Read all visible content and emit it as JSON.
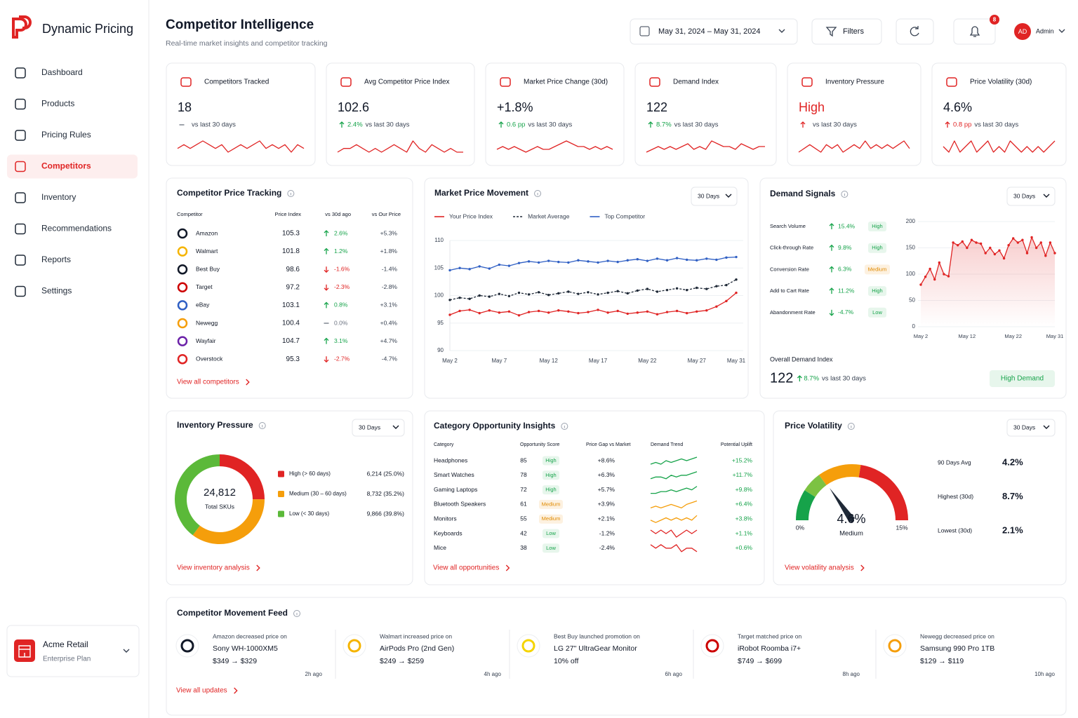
{
  "sidebar": {
    "brand": "Dynamic Pricing",
    "nav": [
      "Dashboard",
      "Products",
      "Pricing Rules",
      "Competitors",
      "Inventory",
      "Recommendations",
      "Reports",
      "Settings"
    ],
    "active": 3,
    "account": {
      "name": "Acme Retail",
      "plan": "Enterprise Plan"
    }
  },
  "header": {
    "title": "Competitor Intelligence",
    "subtitle": "Real-time market insights and competitor tracking",
    "date_range": "May 31, 2024 – May 31, 2024",
    "filters": "Filters",
    "notifications": 8,
    "user_initials": "AD",
    "user": "Admin"
  },
  "kpis": [
    {
      "label": "Competitors Tracked",
      "value": 18,
      "trend": "flat",
      "note": "vs last 30 days",
      "sparkline": [
        4,
        5,
        4,
        5,
        6,
        5,
        4,
        5,
        3,
        4,
        5,
        4,
        5,
        6,
        4,
        5,
        4,
        5,
        3,
        5,
        4
      ]
    },
    {
      "label": "Avg Competitor Price Index",
      "value": 102.6,
      "trend": "up",
      "change": "2.4%",
      "tone": "positive",
      "note": "vs last 30 days",
      "sparkline": [
        4,
        5,
        5,
        6,
        5,
        4,
        5,
        4,
        5,
        6,
        5,
        4,
        7,
        5,
        4,
        6,
        5,
        4,
        5,
        4,
        4
      ]
    },
    {
      "label": "Market Price Change (30d)",
      "value": "+1.8%",
      "trend": "up",
      "change": "0.6 pp",
      "tone": "positive",
      "note": "vs last 30 days",
      "sparkline": [
        4,
        5,
        4,
        5,
        4,
        3,
        4,
        5,
        4,
        4,
        5,
        6,
        7,
        6,
        5,
        5,
        4,
        5,
        4,
        5,
        4
      ]
    },
    {
      "label": "Demand Index",
      "value": 122,
      "trend": "up",
      "change": "8.7%",
      "tone": "positive",
      "note": "vs last 30 days",
      "sparkline": [
        3,
        4,
        5,
        4,
        5,
        4,
        5,
        6,
        4,
        5,
        4,
        7,
        6,
        5,
        5,
        4,
        6,
        5,
        4,
        5,
        5
      ]
    },
    {
      "label": "Inventory Pressure",
      "value": "High",
      "value_color": "#e02424",
      "trend": "up",
      "tone": "negative",
      "note": "vs last 30 days",
      "sparkline": [
        3,
        4,
        5,
        4,
        3,
        5,
        4,
        5,
        3,
        4,
        5,
        4,
        6,
        4,
        5,
        4,
        5,
        4,
        5,
        6,
        4
      ]
    },
    {
      "label": "Price Volatility (30d)",
      "value": "4.6%",
      "trend": "up",
      "change": "0.8 pp",
      "tone": "negative",
      "note": "vs last 30 days",
      "sparkline": [
        5,
        4,
        6,
        4,
        5,
        6,
        4,
        5,
        6,
        4,
        5,
        4,
        6,
        5,
        4,
        5,
        4,
        5,
        4,
        5,
        6
      ]
    }
  ],
  "competitor_tracking": {
    "title": "Competitor Price Tracking",
    "columns": [
      "Competitor",
      "Price Index",
      "vs 30d ago",
      "vs Our Price"
    ],
    "rows": [
      [
        "Amazon",
        105.3,
        "2.6%",
        "+5.3%"
      ],
      [
        "Walmart",
        101.8,
        "1.2%",
        "+1.8%"
      ],
      [
        "Best Buy",
        98.6,
        "-1.6%",
        "-1.4%"
      ],
      [
        "Target",
        97.2,
        "-2.3%",
        "-2.8%"
      ],
      [
        "eBay",
        103.1,
        "0.8%",
        "+3.1%"
      ],
      [
        "Newegg",
        100.4,
        "0.0%",
        "+0.4%"
      ],
      [
        "Wayfair",
        104.7,
        "3.1%",
        "+4.7%"
      ],
      [
        "Overstock",
        95.3,
        "-2.7%",
        "-4.7%"
      ]
    ],
    "link": "View all competitors"
  },
  "market_movement": {
    "title": "Market Price Movement",
    "range": "30 Days",
    "chart_data": {
      "type": "line",
      "categories": [
        "May 2",
        null,
        null,
        null,
        null,
        "May 7",
        null,
        null,
        null,
        null,
        "May 12",
        null,
        null,
        null,
        null,
        "May 17",
        null,
        null,
        null,
        null,
        "May 22",
        null,
        null,
        null,
        null,
        "May 27",
        null,
        null,
        null,
        "May 31"
      ],
      "series": [
        {
          "name": "Your Price Index",
          "color": "#e02424",
          "style": "solid",
          "values": [
            96.5,
            97.2,
            97.4,
            96.8,
            97.3,
            96.9,
            97.1,
            96.4,
            97.0,
            97.2,
            96.9,
            97.3,
            97.1,
            96.8,
            97.0,
            97.4,
            96.9,
            97.2,
            96.7,
            96.9,
            97.1,
            96.6,
            97.0,
            97.2,
            96.8,
            97.1,
            97.3,
            98.0,
            99.0,
            100.5
          ]
        },
        {
          "name": "Market Average",
          "color": "#1f2937",
          "style": "dashed",
          "values": [
            99.2,
            99.6,
            99.4,
            100.0,
            99.8,
            100.3,
            99.9,
            100.5,
            100.2,
            100.6,
            100.1,
            100.4,
            100.7,
            100.3,
            100.6,
            100.2,
            100.5,
            100.8,
            100.4,
            100.9,
            101.2,
            100.7,
            101.0,
            101.3,
            101.0,
            101.4,
            101.2,
            101.7,
            101.9,
            102.9
          ]
        },
        {
          "name": "Top Competitor",
          "color": "#2f5fc4",
          "style": "solid",
          "values": [
            104.6,
            105.0,
            104.8,
            105.3,
            104.9,
            105.6,
            105.4,
            105.9,
            106.2,
            106.0,
            106.3,
            106.1,
            106.0,
            106.4,
            106.2,
            106.0,
            106.3,
            106.1,
            106.4,
            106.6,
            106.3,
            106.7,
            106.4,
            106.8,
            106.5,
            106.4,
            106.7,
            106.5,
            106.9,
            107.0
          ]
        }
      ],
      "ylim": [
        90,
        110
      ],
      "yticks": [
        90,
        95,
        100,
        105,
        110
      ],
      "grid": true
    }
  },
  "demand_signals": {
    "title": "Demand Signals",
    "range": "30 Days",
    "signals": [
      [
        "Search Volume",
        "15.4%",
        "High"
      ],
      [
        "Click-through Rate",
        "9.8%",
        "High"
      ],
      [
        "Conversion Rate",
        "6.3%",
        "Medium"
      ],
      [
        "Add to Cart Rate",
        "11.2%",
        "High"
      ],
      [
        "Abandonment Rate",
        "-4.7%",
        "Low"
      ]
    ],
    "chart_data": {
      "type": "area",
      "categories": [
        "May 2",
        null,
        null,
        null,
        null,
        null,
        null,
        null,
        null,
        null,
        "May 12",
        null,
        null,
        null,
        null,
        null,
        null,
        null,
        null,
        null,
        "May 22",
        null,
        null,
        null,
        null,
        null,
        null,
        null,
        null,
        "May 31"
      ],
      "values": [
        80,
        95,
        110,
        90,
        122,
        100,
        96,
        160,
        155,
        162,
        150,
        165,
        160,
        158,
        140,
        150,
        138,
        145,
        130,
        155,
        168,
        160,
        165,
        140,
        170,
        150,
        160,
        135,
        160,
        140
      ],
      "color": "#e02424",
      "ylim": [
        0,
        200
      ],
      "yticks": [
        0,
        50,
        100,
        150,
        200
      ],
      "grid": true
    },
    "overall_label": "Overall Demand Index",
    "overall_value": 122,
    "overall_change": "8.7%",
    "overall_note": "vs last 30 days",
    "overall_badge": "High Demand"
  },
  "inventory_pressure": {
    "title": "Inventory Pressure",
    "range": "30 Days",
    "total": "24,812",
    "total_label": "Total SKUs",
    "chart_data": {
      "type": "donut",
      "categories": [
        "High (> 60 days)",
        "Medium (30 – 60 days)",
        "Low (< 30 days)"
      ],
      "values": [
        6214,
        8732,
        9866
      ],
      "value_labels": [
        "6,214 (25.0%)",
        "8,732 (35.2%)",
        "9,866 (39.8%)"
      ],
      "colors": [
        "#e02424",
        "#f59e0b",
        "#5bb939"
      ]
    },
    "link": "View inventory analysis"
  },
  "category_opportunity": {
    "title": "Category Opportunity Insights",
    "columns": [
      "Category",
      "Opportunity Score",
      "Price Gap vs Market",
      "Demand Trend",
      "Potential Uplift"
    ],
    "rows": [
      {
        "category": "Headphones",
        "score": 85,
        "level": "High",
        "gap": "+8.6%",
        "trend": [
          3,
          4,
          3,
          5,
          4,
          5,
          6,
          5,
          6,
          7
        ],
        "uplift": "+15.2%"
      },
      {
        "category": "Smart Watches",
        "score": 78,
        "level": "High",
        "gap": "+6.3%",
        "trend": [
          3,
          4,
          4,
          3,
          5,
          4,
          5,
          5,
          6,
          7
        ],
        "uplift": "+11.7%"
      },
      {
        "category": "Gaming Laptops",
        "score": 72,
        "level": "High",
        "gap": "+5.7%",
        "trend": [
          3,
          3,
          4,
          4,
          5,
          4,
          5,
          6,
          5,
          7
        ],
        "uplift": "+9.8%"
      },
      {
        "category": "Bluetooth Speakers",
        "score": 61,
        "level": "Medium",
        "gap": "+3.9%",
        "trend": [
          3,
          4,
          3,
          4,
          5,
          4,
          3,
          5,
          6,
          7
        ],
        "uplift": "+6.4%"
      },
      {
        "category": "Monitors",
        "score": 55,
        "level": "Medium",
        "gap": "+2.1%",
        "trend": [
          4,
          3,
          4,
          5,
          4,
          5,
          4,
          5,
          4,
          6
        ],
        "uplift": "+3.8%"
      },
      {
        "category": "Keyboards",
        "score": 42,
        "level": "Low",
        "gap": "-1.2%",
        "trend": [
          5,
          4,
          5,
          4,
          5,
          3,
          4,
          5,
          4,
          5
        ],
        "uplift": "+1.1%"
      },
      {
        "category": "Mice",
        "score": 38,
        "level": "Low",
        "gap": "-2.4%",
        "trend": [
          5,
          4,
          5,
          4,
          4,
          5,
          3,
          4,
          4,
          3
        ],
        "uplift": "+0.6%"
      }
    ],
    "link": "View all opportunities"
  },
  "price_volatility": {
    "title": "Price Volatility",
    "range": "30 Days",
    "chart_data": {
      "type": "gauge",
      "value": 4.6,
      "value_label": "4.6%",
      "min": 0,
      "max": 15,
      "min_label": "0%",
      "max_label": "15%",
      "status": "Medium"
    },
    "stats": [
      [
        "90 Days Avg",
        "4.2%"
      ],
      [
        "Highest (30d)",
        "8.7%"
      ],
      [
        "Lowest (30d)",
        "2.1%"
      ]
    ],
    "link": "View volatility analysis"
  },
  "feed": {
    "title": "Competitor Movement Feed",
    "items": [
      {
        "action": "Amazon decreased price on",
        "product": "Sony WH-1000XM5",
        "detail": "$349 → $329",
        "time": "2h ago"
      },
      {
        "action": "Walmart increased price on",
        "product": "AirPods Pro (2nd Gen)",
        "detail": "$249 → $259",
        "time": "4h ago"
      },
      {
        "action": "Best Buy launched promotion on",
        "product": "LG 27\" UltraGear Monitor",
        "detail": "10% off",
        "time": "6h ago"
      },
      {
        "action": "Target matched price on",
        "product": "iRobot Roomba i7+",
        "detail": "$749 → $699",
        "time": "8h ago"
      },
      {
        "action": "Newegg decreased price on",
        "product": "Samsung 990 Pro 1TB",
        "detail": "$129 → $119",
        "time": "10h ago"
      }
    ],
    "link": "View all updates"
  }
}
